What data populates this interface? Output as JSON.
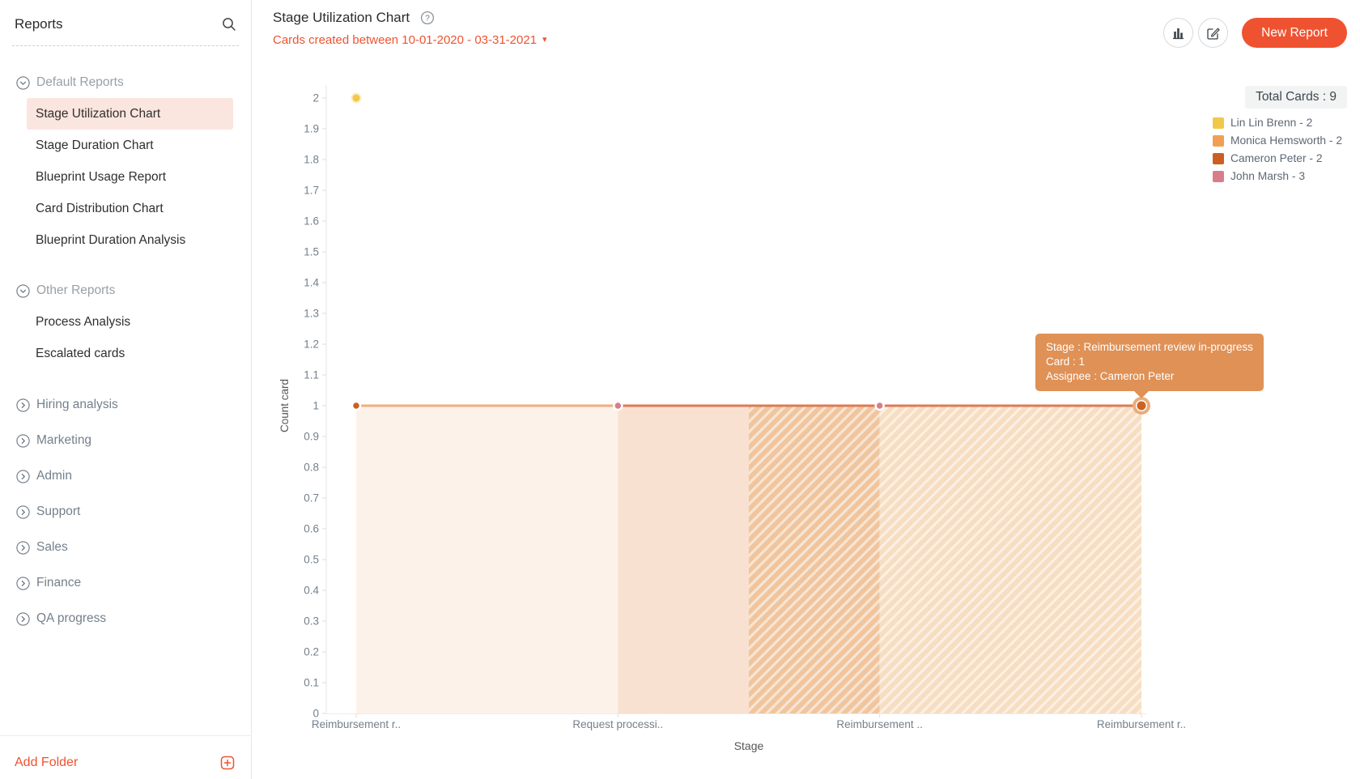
{
  "sidebar": {
    "title": "Reports",
    "sections": [
      {
        "label": "Default Reports",
        "expanded": true,
        "items": [
          {
            "label": "Stage Utilization Chart",
            "selected": true
          },
          {
            "label": "Stage Duration Chart",
            "selected": false
          },
          {
            "label": "Blueprint Usage Report",
            "selected": false
          },
          {
            "label": "Card Distribution Chart",
            "selected": false
          },
          {
            "label": "Blueprint Duration Analysis",
            "selected": false
          }
        ]
      },
      {
        "label": "Other Reports",
        "expanded": true,
        "items": [
          {
            "label": "Process Analysis",
            "selected": false
          },
          {
            "label": "Escalated cards",
            "selected": false
          }
        ]
      }
    ],
    "folders": [
      {
        "label": "Hiring analysis"
      },
      {
        "label": "Marketing"
      },
      {
        "label": "Admin"
      },
      {
        "label": "Support"
      },
      {
        "label": "Sales"
      },
      {
        "label": "Finance"
      },
      {
        "label": "QA progress"
      }
    ],
    "add_folder": "Add Folder"
  },
  "header": {
    "title": "Stage Utilization Chart",
    "date_filter": "Cards created between 10-01-2020 - 03-31-2021",
    "new_report": "New Report"
  },
  "colors": {
    "accent": "#ef5230",
    "tooltip_bg": "#df9156",
    "selected_item_bg": "#fbe5df",
    "badge_bg": "#f2f3f3"
  },
  "chart_data": {
    "type": "area",
    "title": "Stage Utilization Chart",
    "xlabel": "Stage",
    "ylabel": "Count card",
    "ylim": [
      0,
      2
    ],
    "ytick_step": 0.1,
    "categories": [
      "Reimbursement r..",
      "Request processi..",
      "Reimbursement ..",
      "Reimbursement r.."
    ],
    "values": [
      1,
      1,
      1,
      1
    ],
    "scatter_points": [
      {
        "category_index": 0,
        "value": 2,
        "series": "Lin Lin Brenn",
        "color": "#f2c84b"
      }
    ],
    "line_segments": [
      {
        "from": 0,
        "to": 1,
        "color": "#efaf7e"
      },
      {
        "from": 1,
        "to": 3,
        "color": "#dd7b55"
      }
    ],
    "vertex_points": [
      {
        "category_index": 0,
        "value": 1,
        "color": "#c96022",
        "highlighted": false
      },
      {
        "category_index": 1,
        "value": 1,
        "color": "#d87e8a",
        "highlighted": false
      },
      {
        "category_index": 2,
        "value": 1,
        "color": "#d87e8a",
        "highlighted": false
      },
      {
        "category_index": 3,
        "value": 1,
        "color": "#cc6322",
        "highlighted": true
      }
    ],
    "area_segments": [
      {
        "from": 0,
        "to": 1,
        "fill": "#fdf2ea",
        "hatch": false
      },
      {
        "from": 1,
        "to": 1.5,
        "fill": "#f9e1d1",
        "hatch": false
      },
      {
        "from": 1.5,
        "to": 2,
        "fill": "#f0c59e",
        "hatch": true
      },
      {
        "from": 2,
        "to": 3,
        "fill": "#f7ddc1",
        "hatch": true
      }
    ],
    "total_cards": "Total Cards : 9",
    "legend": [
      {
        "label": "Lin Lin Brenn - 2",
        "color": "#f2c84b"
      },
      {
        "label": "Monica Hemsworth - 2",
        "color": "#f0a053"
      },
      {
        "label": "Cameron Peter - 2",
        "color": "#c96022"
      },
      {
        "label": "John Marsh - 3",
        "color": "#d87e8a"
      }
    ],
    "tooltip": {
      "lines": [
        "Stage : Reimbursement review in-progress",
        "Card : 1",
        "Assignee : Cameron Peter"
      ],
      "anchor_category_index": 3
    }
  }
}
